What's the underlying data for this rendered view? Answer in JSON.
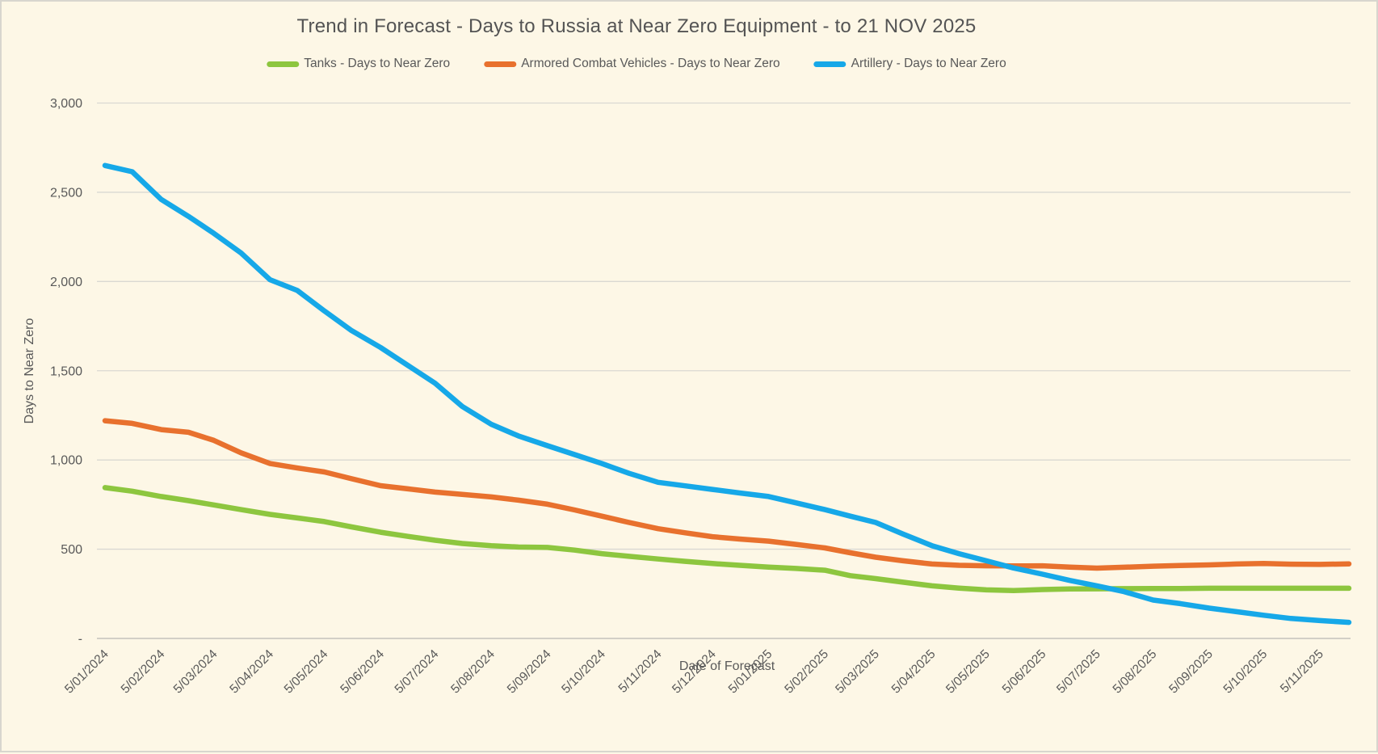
{
  "chart": {
    "title": "Trend in Forecast - Days to Russia at Near Zero Equipment - to 21 NOV 2025",
    "x_axis_title": "Date of Forecast",
    "y_axis_title": "Days to Near Zero"
  },
  "chart_data": {
    "type": "line",
    "title": "Trend in Forecast - Days to Russia at Near Zero Equipment - to 21 NOV 2025",
    "xlabel": "Date of Forecast",
    "ylabel": "Days to Near Zero",
    "ylim": [
      0,
      3000
    ],
    "grid": "horizontal",
    "legend_position": "top",
    "background_color": "#FDF7E6",
    "gridline_color": "#DAD8D2",
    "axis_line_color": "#C4C2BC",
    "text_color": "#595959",
    "x_unit": "days since first forecast (5/01/2024); last data point 21 NOV 2025",
    "x_domain_days": [
      0,
      686
    ],
    "y_ticks": [
      {
        "value": 0,
        "label": "-"
      },
      {
        "value": 500,
        "label": "500"
      },
      {
        "value": 1000,
        "label": "1,000"
      },
      {
        "value": 1500,
        "label": "1,500"
      },
      {
        "value": 2000,
        "label": "2,000"
      },
      {
        "value": 2500,
        "label": "2,500"
      },
      {
        "value": 3000,
        "label": "3,000"
      }
    ],
    "x_ticks": [
      {
        "day": 0,
        "label": "5/01/2024"
      },
      {
        "day": 31,
        "label": "5/02/2024"
      },
      {
        "day": 60,
        "label": "5/03/2024"
      },
      {
        "day": 91,
        "label": "5/04/2024"
      },
      {
        "day": 121,
        "label": "5/05/2024"
      },
      {
        "day": 152,
        "label": "5/06/2024"
      },
      {
        "day": 182,
        "label": "5/07/2024"
      },
      {
        "day": 213,
        "label": "5/08/2024"
      },
      {
        "day": 244,
        "label": "5/09/2024"
      },
      {
        "day": 274,
        "label": "5/10/2024"
      },
      {
        "day": 305,
        "label": "5/11/2024"
      },
      {
        "day": 335,
        "label": "5/12/2024"
      },
      {
        "day": 366,
        "label": "5/01/2025"
      },
      {
        "day": 397,
        "label": "5/02/2025"
      },
      {
        "day": 425,
        "label": "5/03/2025"
      },
      {
        "day": 456,
        "label": "5/04/2025"
      },
      {
        "day": 486,
        "label": "5/05/2025"
      },
      {
        "day": 517,
        "label": "5/06/2025"
      },
      {
        "day": 547,
        "label": "5/07/2025"
      },
      {
        "day": 578,
        "label": "5/08/2025"
      },
      {
        "day": 609,
        "label": "5/09/2025"
      },
      {
        "day": 639,
        "label": "5/10/2025"
      },
      {
        "day": 670,
        "label": "5/11/2025"
      }
    ],
    "series": [
      {
        "name": "Tanks - Days to Near Zero",
        "color": "#8DC63F",
        "points": [
          [
            0,
            845
          ],
          [
            15,
            825
          ],
          [
            31,
            795
          ],
          [
            46,
            772
          ],
          [
            60,
            748
          ],
          [
            75,
            722
          ],
          [
            91,
            695
          ],
          [
            106,
            675
          ],
          [
            121,
            655
          ],
          [
            136,
            625
          ],
          [
            152,
            595
          ],
          [
            167,
            572
          ],
          [
            182,
            550
          ],
          [
            197,
            532
          ],
          [
            213,
            520
          ],
          [
            228,
            512
          ],
          [
            244,
            510
          ],
          [
            259,
            495
          ],
          [
            274,
            475
          ],
          [
            289,
            460
          ],
          [
            305,
            445
          ],
          [
            320,
            432
          ],
          [
            335,
            420
          ],
          [
            350,
            410
          ],
          [
            366,
            400
          ],
          [
            381,
            392
          ],
          [
            397,
            382
          ],
          [
            411,
            352
          ],
          [
            425,
            335
          ],
          [
            440,
            315
          ],
          [
            456,
            295
          ],
          [
            471,
            282
          ],
          [
            486,
            272
          ],
          [
            501,
            268
          ],
          [
            517,
            274
          ],
          [
            532,
            277
          ],
          [
            547,
            278
          ],
          [
            562,
            279
          ],
          [
            578,
            280
          ],
          [
            593,
            280
          ],
          [
            609,
            281
          ],
          [
            624,
            281
          ],
          [
            639,
            281
          ],
          [
            654,
            281
          ],
          [
            670,
            281
          ],
          [
            686,
            281
          ]
        ]
      },
      {
        "name": "Armored Combat Vehicles - Days to Near Zero",
        "color": "#E8712E",
        "points": [
          [
            0,
            1220
          ],
          [
            15,
            1205
          ],
          [
            31,
            1170
          ],
          [
            46,
            1155
          ],
          [
            60,
            1110
          ],
          [
            75,
            1040
          ],
          [
            91,
            980
          ],
          [
            106,
            955
          ],
          [
            121,
            933
          ],
          [
            136,
            895
          ],
          [
            152,
            856
          ],
          [
            167,
            838
          ],
          [
            182,
            820
          ],
          [
            197,
            807
          ],
          [
            213,
            793
          ],
          [
            228,
            775
          ],
          [
            244,
            752
          ],
          [
            259,
            720
          ],
          [
            274,
            685
          ],
          [
            289,
            650
          ],
          [
            305,
            615
          ],
          [
            320,
            592
          ],
          [
            335,
            570
          ],
          [
            350,
            557
          ],
          [
            366,
            545
          ],
          [
            381,
            527
          ],
          [
            397,
            507
          ],
          [
            411,
            480
          ],
          [
            425,
            455
          ],
          [
            440,
            435
          ],
          [
            456,
            417
          ],
          [
            471,
            410
          ],
          [
            486,
            407
          ],
          [
            501,
            406
          ],
          [
            517,
            407
          ],
          [
            532,
            400
          ],
          [
            547,
            394
          ],
          [
            562,
            399
          ],
          [
            578,
            405
          ],
          [
            593,
            409
          ],
          [
            609,
            412
          ],
          [
            624,
            417
          ],
          [
            639,
            420
          ],
          [
            654,
            416
          ],
          [
            670,
            415
          ],
          [
            686,
            418
          ]
        ]
      },
      {
        "name": "Artillery - Days to Near Zero",
        "color": "#16A8E8",
        "points": [
          [
            0,
            2650
          ],
          [
            15,
            2615
          ],
          [
            31,
            2460
          ],
          [
            46,
            2365
          ],
          [
            60,
            2270
          ],
          [
            75,
            2160
          ],
          [
            91,
            2010
          ],
          [
            106,
            1950
          ],
          [
            121,
            1835
          ],
          [
            136,
            1725
          ],
          [
            152,
            1630
          ],
          [
            167,
            1530
          ],
          [
            182,
            1430
          ],
          [
            197,
            1300
          ],
          [
            213,
            1200
          ],
          [
            228,
            1135
          ],
          [
            244,
            1080
          ],
          [
            259,
            1030
          ],
          [
            274,
            980
          ],
          [
            289,
            925
          ],
          [
            305,
            875
          ],
          [
            320,
            855
          ],
          [
            335,
            835
          ],
          [
            350,
            815
          ],
          [
            366,
            795
          ],
          [
            381,
            760
          ],
          [
            397,
            722
          ],
          [
            411,
            685
          ],
          [
            425,
            650
          ],
          [
            440,
            585
          ],
          [
            456,
            520
          ],
          [
            471,
            475
          ],
          [
            486,
            435
          ],
          [
            501,
            395
          ],
          [
            517,
            360
          ],
          [
            532,
            325
          ],
          [
            547,
            295
          ],
          [
            562,
            262
          ],
          [
            578,
            215
          ],
          [
            593,
            195
          ],
          [
            609,
            170
          ],
          [
            624,
            150
          ],
          [
            639,
            130
          ],
          [
            654,
            112
          ],
          [
            670,
            100
          ],
          [
            686,
            90
          ]
        ]
      }
    ]
  }
}
